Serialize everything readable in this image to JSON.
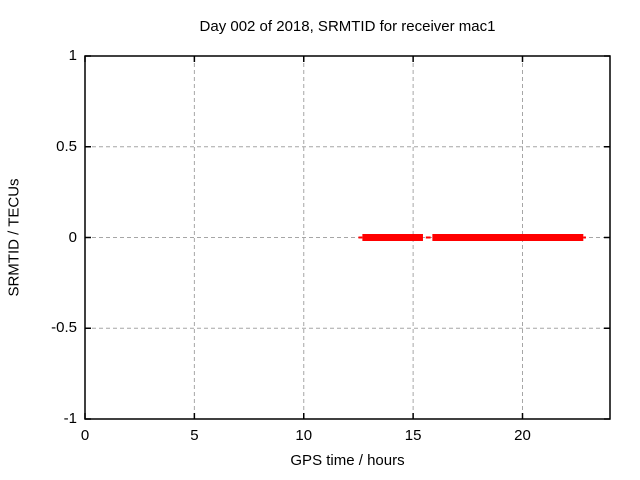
{
  "figure": {
    "background": "#ffffff",
    "text_color": "#000000"
  },
  "chart_data": {
    "type": "line",
    "title": "Day 002 of 2018, SRMTID for receiver mac1",
    "xlabel": "GPS time / hours",
    "ylabel": "SRMTID / TECUs",
    "xlim": [
      0,
      24
    ],
    "ylim": [
      -1,
      1
    ],
    "xticks": [
      {
        "v": 0,
        "label": "0"
      },
      {
        "v": 5,
        "label": "5"
      },
      {
        "v": 10,
        "label": "10"
      },
      {
        "v": 15,
        "label": "15"
      },
      {
        "v": 20,
        "label": "20"
      }
    ],
    "yticks": [
      {
        "v": -1,
        "label": "-1"
      },
      {
        "v": -0.5,
        "label": "-0.5"
      },
      {
        "v": 0,
        "label": "0"
      },
      {
        "v": 0.5,
        "label": "0.5"
      },
      {
        "v": 1,
        "label": "1"
      }
    ],
    "grid": true,
    "legend_position": "none",
    "series": [
      {
        "name": "SRMTID",
        "color": "#ff0000",
        "y_value": 0,
        "segments": [
          {
            "x1": 12.5,
            "x2": 12.68,
            "style": "thin"
          },
          {
            "x1": 12.68,
            "x2": 15.45,
            "style": "thick"
          },
          {
            "x1": 15.58,
            "x2": 15.8,
            "style": "thin"
          },
          {
            "x1": 15.88,
            "x2": 22.78,
            "style": "thick"
          },
          {
            "x1": 22.78,
            "x2": 22.9,
            "style": "thin"
          }
        ]
      }
    ],
    "colors": {
      "grid": "#a6a6a6",
      "border": "#000000",
      "series": "#ff0000"
    }
  }
}
